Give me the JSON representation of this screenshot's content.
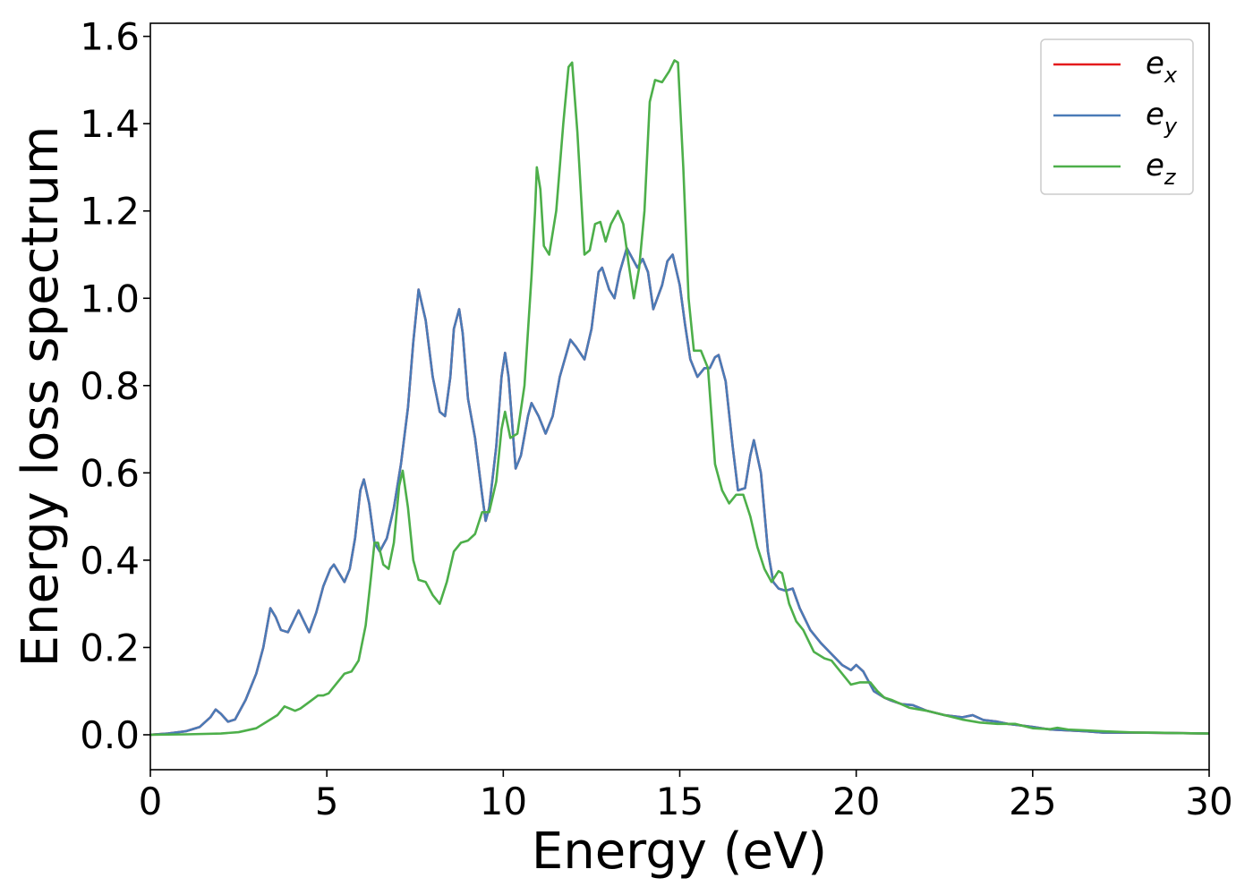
{
  "chart_data": {
    "type": "line",
    "xlabel": "Energy (eV)",
    "ylabel": "Energy loss spectrum",
    "xlim": [
      0,
      30
    ],
    "ylim": [
      -0.08,
      1.63
    ],
    "xticks": [
      0,
      5,
      10,
      15,
      20,
      25,
      30
    ],
    "yticks": [
      0.0,
      0.2,
      0.4,
      0.6,
      0.8,
      1.0,
      1.2,
      1.4,
      1.6
    ],
    "xtick_labels": [
      "0",
      "5",
      "10",
      "15",
      "20",
      "25",
      "30"
    ],
    "ytick_labels": [
      "0.0",
      "0.2",
      "0.4",
      "0.6",
      "0.8",
      "1.0",
      "1.2",
      "1.4",
      "1.6"
    ],
    "grid": false,
    "legend_position": "top-right",
    "series": [
      {
        "name": "e_x",
        "label_base": "e",
        "label_sub": "x",
        "color": "#e41a1c",
        "x": [
          0,
          0.5,
          1.0,
          1.4,
          1.7,
          1.85,
          2.0,
          2.2,
          2.4,
          2.7,
          3.0,
          3.2,
          3.4,
          3.55,
          3.7,
          3.9,
          4.05,
          4.2,
          4.35,
          4.5,
          4.7,
          4.9,
          5.1,
          5.2,
          5.35,
          5.5,
          5.65,
          5.8,
          5.95,
          6.05,
          6.2,
          6.35,
          6.5,
          6.7,
          6.9,
          7.1,
          7.3,
          7.45,
          7.6,
          7.8,
          8.0,
          8.2,
          8.35,
          8.5,
          8.6,
          8.75,
          8.85,
          9.0,
          9.2,
          9.4,
          9.5,
          9.6,
          9.8,
          9.95,
          10.05,
          10.15,
          10.35,
          10.5,
          10.7,
          10.8,
          11.0,
          11.2,
          11.4,
          11.6,
          11.9,
          12.05,
          12.3,
          12.5,
          12.7,
          12.8,
          13.0,
          13.15,
          13.3,
          13.5,
          13.6,
          13.8,
          13.95,
          14.1,
          14.25,
          14.5,
          14.65,
          14.8,
          15.0,
          15.15,
          15.3,
          15.5,
          15.7,
          15.85,
          16.0,
          16.1,
          16.3,
          16.5,
          16.65,
          16.85,
          17.0,
          17.1,
          17.3,
          17.5,
          17.65,
          17.8,
          18.0,
          18.2,
          18.4,
          18.7,
          19.0,
          19.3,
          19.6,
          19.85,
          20.0,
          20.2,
          20.5,
          20.8,
          21.0,
          21.3,
          21.6,
          22.0,
          22.5,
          23.0,
          23.3,
          23.6,
          24.0,
          24.3,
          25.0,
          25.5,
          26.0,
          26.5,
          27.0,
          28.0,
          29.0,
          30.0
        ],
        "y": [
          0.0,
          0.003,
          0.008,
          0.018,
          0.04,
          0.058,
          0.048,
          0.03,
          0.035,
          0.08,
          0.14,
          0.2,
          0.29,
          0.27,
          0.24,
          0.235,
          0.26,
          0.285,
          0.26,
          0.235,
          0.28,
          0.34,
          0.38,
          0.39,
          0.37,
          0.35,
          0.38,
          0.45,
          0.56,
          0.585,
          0.53,
          0.44,
          0.42,
          0.45,
          0.52,
          0.62,
          0.75,
          0.9,
          1.02,
          0.95,
          0.82,
          0.74,
          0.73,
          0.82,
          0.93,
          0.975,
          0.92,
          0.77,
          0.68,
          0.55,
          0.49,
          0.52,
          0.66,
          0.82,
          0.875,
          0.82,
          0.61,
          0.64,
          0.73,
          0.76,
          0.73,
          0.69,
          0.73,
          0.82,
          0.905,
          0.89,
          0.86,
          0.93,
          1.06,
          1.07,
          1.02,
          1.0,
          1.06,
          1.115,
          1.1,
          1.07,
          1.09,
          1.06,
          0.975,
          1.03,
          1.085,
          1.1,
          1.03,
          0.94,
          0.86,
          0.82,
          0.84,
          0.84,
          0.865,
          0.87,
          0.81,
          0.66,
          0.56,
          0.565,
          0.64,
          0.675,
          0.6,
          0.42,
          0.35,
          0.335,
          0.33,
          0.335,
          0.29,
          0.24,
          0.21,
          0.185,
          0.16,
          0.148,
          0.16,
          0.145,
          0.1,
          0.085,
          0.078,
          0.07,
          0.068,
          0.055,
          0.045,
          0.04,
          0.045,
          0.034,
          0.03,
          0.025,
          0.018,
          0.012,
          0.01,
          0.008,
          0.005,
          0.005,
          0.004,
          0.003
        ]
      },
      {
        "name": "e_y",
        "label_base": "e",
        "label_sub": "y",
        "color": "#4a7bb7",
        "x": [
          0,
          0.5,
          1.0,
          1.4,
          1.7,
          1.85,
          2.0,
          2.2,
          2.4,
          2.7,
          3.0,
          3.2,
          3.4,
          3.55,
          3.7,
          3.9,
          4.05,
          4.2,
          4.35,
          4.5,
          4.7,
          4.9,
          5.1,
          5.2,
          5.35,
          5.5,
          5.65,
          5.8,
          5.95,
          6.05,
          6.2,
          6.35,
          6.5,
          6.7,
          6.9,
          7.1,
          7.3,
          7.45,
          7.6,
          7.8,
          8.0,
          8.2,
          8.35,
          8.5,
          8.6,
          8.75,
          8.85,
          9.0,
          9.2,
          9.4,
          9.5,
          9.6,
          9.8,
          9.95,
          10.05,
          10.15,
          10.35,
          10.5,
          10.7,
          10.8,
          11.0,
          11.2,
          11.4,
          11.6,
          11.9,
          12.05,
          12.3,
          12.5,
          12.7,
          12.8,
          13.0,
          13.15,
          13.3,
          13.5,
          13.6,
          13.8,
          13.95,
          14.1,
          14.25,
          14.5,
          14.65,
          14.8,
          15.0,
          15.15,
          15.3,
          15.5,
          15.7,
          15.85,
          16.0,
          16.1,
          16.3,
          16.5,
          16.65,
          16.85,
          17.0,
          17.1,
          17.3,
          17.5,
          17.65,
          17.8,
          18.0,
          18.2,
          18.4,
          18.7,
          19.0,
          19.3,
          19.6,
          19.85,
          20.0,
          20.2,
          20.5,
          20.8,
          21.0,
          21.3,
          21.6,
          22.0,
          22.5,
          23.0,
          23.3,
          23.6,
          24.0,
          24.3,
          25.0,
          25.5,
          26.0,
          26.5,
          27.0,
          28.0,
          29.0,
          30.0
        ],
        "y": [
          0.0,
          0.003,
          0.008,
          0.018,
          0.04,
          0.058,
          0.048,
          0.03,
          0.035,
          0.08,
          0.14,
          0.2,
          0.29,
          0.27,
          0.24,
          0.235,
          0.26,
          0.285,
          0.26,
          0.235,
          0.28,
          0.34,
          0.38,
          0.39,
          0.37,
          0.35,
          0.38,
          0.45,
          0.56,
          0.585,
          0.53,
          0.44,
          0.42,
          0.45,
          0.52,
          0.62,
          0.75,
          0.9,
          1.02,
          0.95,
          0.82,
          0.74,
          0.73,
          0.82,
          0.93,
          0.975,
          0.92,
          0.77,
          0.68,
          0.55,
          0.49,
          0.52,
          0.66,
          0.82,
          0.875,
          0.82,
          0.61,
          0.64,
          0.73,
          0.76,
          0.73,
          0.69,
          0.73,
          0.82,
          0.905,
          0.89,
          0.86,
          0.93,
          1.06,
          1.07,
          1.02,
          1.0,
          1.06,
          1.115,
          1.1,
          1.07,
          1.09,
          1.06,
          0.975,
          1.03,
          1.085,
          1.1,
          1.03,
          0.94,
          0.86,
          0.82,
          0.84,
          0.84,
          0.865,
          0.87,
          0.81,
          0.66,
          0.56,
          0.565,
          0.64,
          0.675,
          0.6,
          0.42,
          0.35,
          0.335,
          0.33,
          0.335,
          0.29,
          0.24,
          0.21,
          0.185,
          0.16,
          0.148,
          0.16,
          0.145,
          0.1,
          0.085,
          0.078,
          0.07,
          0.068,
          0.055,
          0.045,
          0.04,
          0.045,
          0.034,
          0.03,
          0.025,
          0.018,
          0.012,
          0.01,
          0.008,
          0.005,
          0.005,
          0.004,
          0.003
        ]
      },
      {
        "name": "e_z",
        "label_base": "e",
        "label_sub": "z",
        "color": "#4daf4a",
        "x": [
          0,
          1.0,
          2.0,
          2.5,
          3.0,
          3.3,
          3.6,
          3.8,
          3.95,
          4.1,
          4.25,
          4.5,
          4.75,
          4.9,
          5.05,
          5.3,
          5.5,
          5.7,
          5.9,
          6.1,
          6.25,
          6.35,
          6.45,
          6.6,
          6.75,
          6.9,
          7.05,
          7.15,
          7.3,
          7.45,
          7.6,
          7.8,
          8.0,
          8.2,
          8.4,
          8.6,
          8.8,
          9.0,
          9.2,
          9.4,
          9.6,
          9.8,
          9.95,
          10.05,
          10.2,
          10.4,
          10.6,
          10.8,
          10.9,
          10.95,
          11.05,
          11.15,
          11.3,
          11.5,
          11.7,
          11.85,
          11.95,
          12.1,
          12.3,
          12.45,
          12.6,
          12.75,
          12.9,
          13.05,
          13.25,
          13.4,
          13.55,
          13.7,
          13.85,
          14.0,
          14.15,
          14.3,
          14.5,
          14.7,
          14.85,
          14.95,
          15.1,
          15.25,
          15.4,
          15.6,
          15.8,
          16.0,
          16.2,
          16.4,
          16.6,
          16.8,
          17.0,
          17.2,
          17.4,
          17.6,
          17.8,
          17.9,
          18.1,
          18.3,
          18.5,
          18.8,
          19.1,
          19.3,
          19.6,
          19.85,
          20.1,
          20.4,
          20.6,
          20.8,
          21.0,
          21.5,
          22.0,
          22.5,
          23.0,
          23.5,
          24.0,
          24.5,
          25.0,
          25.5,
          25.7,
          26.0,
          26.5,
          27.0,
          28.0,
          28.5,
          29.0,
          30.0
        ],
        "y": [
          0.0,
          0.001,
          0.003,
          0.006,
          0.015,
          0.03,
          0.045,
          0.065,
          0.06,
          0.055,
          0.06,
          0.075,
          0.09,
          0.09,
          0.095,
          0.12,
          0.14,
          0.145,
          0.17,
          0.25,
          0.36,
          0.44,
          0.44,
          0.39,
          0.38,
          0.44,
          0.57,
          0.605,
          0.52,
          0.4,
          0.355,
          0.35,
          0.32,
          0.3,
          0.35,
          0.42,
          0.44,
          0.445,
          0.46,
          0.51,
          0.51,
          0.58,
          0.7,
          0.74,
          0.68,
          0.69,
          0.8,
          1.05,
          1.2,
          1.3,
          1.25,
          1.12,
          1.1,
          1.2,
          1.4,
          1.53,
          1.54,
          1.38,
          1.1,
          1.11,
          1.17,
          1.175,
          1.13,
          1.17,
          1.2,
          1.17,
          1.08,
          1.0,
          1.07,
          1.2,
          1.45,
          1.5,
          1.495,
          1.52,
          1.545,
          1.54,
          1.3,
          1.0,
          0.88,
          0.88,
          0.84,
          0.62,
          0.56,
          0.53,
          0.55,
          0.55,
          0.5,
          0.43,
          0.38,
          0.35,
          0.375,
          0.37,
          0.3,
          0.26,
          0.24,
          0.19,
          0.175,
          0.17,
          0.14,
          0.115,
          0.12,
          0.12,
          0.1,
          0.085,
          0.08,
          0.062,
          0.055,
          0.045,
          0.035,
          0.028,
          0.025,
          0.025,
          0.015,
          0.013,
          0.016,
          0.012,
          0.01,
          0.008,
          0.005,
          0.005,
          0.004,
          0.003
        ]
      }
    ]
  }
}
